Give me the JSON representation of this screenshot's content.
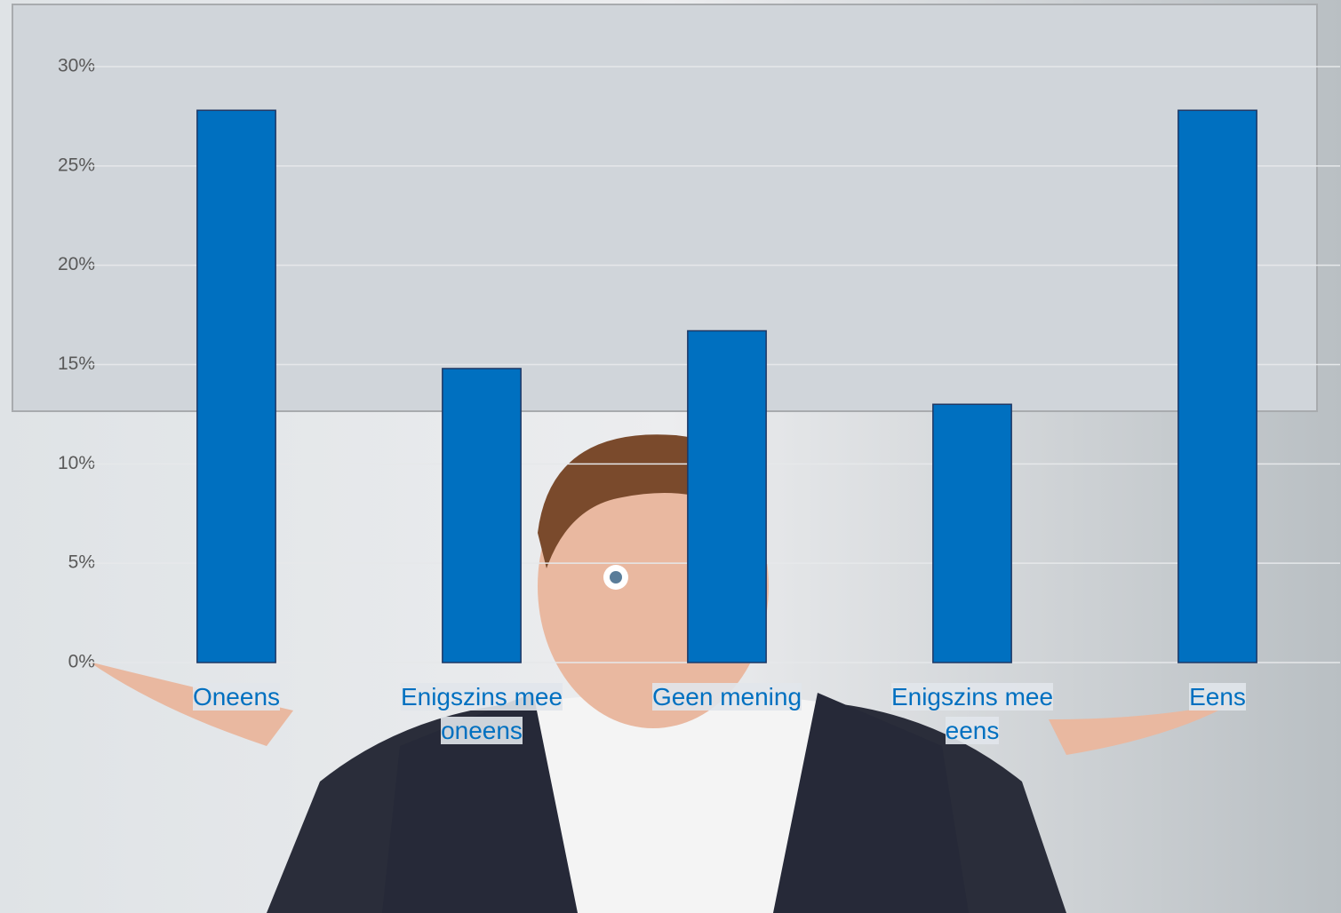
{
  "chart_data": {
    "type": "bar",
    "categories": [
      "Oneens",
      "Enigszins mee oneens",
      "Geen mening",
      "Enigszins mee eens",
      "Eens"
    ],
    "values": [
      27.8,
      14.8,
      16.7,
      13.0,
      27.8
    ],
    "color": "#0070c0",
    "ylim": [
      0,
      30
    ],
    "yticks": [
      {
        "value": 0,
        "label": "0%"
      },
      {
        "value": 5,
        "label": "5%"
      },
      {
        "value": 10,
        "label": "10%"
      },
      {
        "value": 15,
        "label": "15%"
      },
      {
        "value": 20,
        "label": "20%"
      },
      {
        "value": 25,
        "label": "25%"
      },
      {
        "value": 30,
        "label": "30%"
      }
    ],
    "grid": true
  }
}
